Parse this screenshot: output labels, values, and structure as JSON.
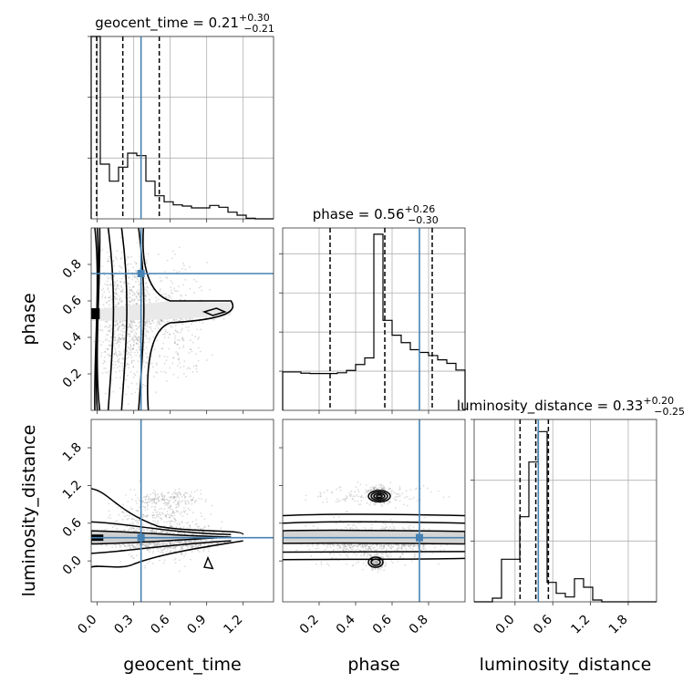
{
  "chart_data": {
    "type": "corner",
    "parameters": [
      "geocent_time",
      "phase",
      "luminosity_distance"
    ],
    "grid": true,
    "injection_color": "#4682b4",
    "line_color": "#000000",
    "diagonal": [
      {
        "parameter": "geocent_time",
        "title": {
          "prefix": "geocent_time = ",
          "value": "0.21",
          "upper": "+0.30",
          "lower": "−0.21"
        },
        "xlim": [
          -0.05,
          1.45
        ],
        "quantiles": [
          -0.005,
          0.21,
          0.51
        ],
        "injection": 0.36,
        "hist_edges": [
          -0.05,
          0.025,
          0.1,
          0.175,
          0.25,
          0.325,
          0.4,
          0.475,
          0.55,
          0.625,
          0.7,
          0.775,
          0.85,
          0.925,
          1.0,
          1.075,
          1.15,
          1.225,
          1.3,
          1.375,
          1.45
        ],
        "hist_counts": [
          3.0,
          0.9,
          0.62,
          0.85,
          1.08,
          1.04,
          0.62,
          0.38,
          0.28,
          0.23,
          0.21,
          0.18,
          0.18,
          0.22,
          0.19,
          0.11,
          0.06,
          0.01,
          0.0,
          0.0
        ],
        "ymax": 3.0,
        "yticks": [
          1.0,
          2.0,
          3.0
        ],
        "xticks": [
          0.0,
          0.3,
          0.6,
          0.9,
          1.2
        ],
        "xtick_labels": [
          "0.0",
          "0.3",
          "0.6",
          "0.9",
          "1.2"
        ]
      },
      {
        "parameter": "phase",
        "title": {
          "prefix": "phase = ",
          "value": "0.56",
          "upper": "+0.26",
          "lower": "−0.30"
        },
        "xlim": [
          0.0,
          1.0
        ],
        "quantiles": [
          0.26,
          0.56,
          0.82
        ],
        "injection": 0.75,
        "hist_edges": [
          0.0,
          0.05,
          0.1,
          0.15,
          0.2,
          0.25,
          0.3,
          0.35,
          0.4,
          0.45,
          0.5,
          0.55,
          0.6,
          0.65,
          0.7,
          0.75,
          0.8,
          0.85,
          0.9,
          0.95,
          1.0
        ],
        "hist_counts": [
          0.98,
          0.98,
          0.95,
          0.94,
          0.94,
          0.94,
          0.96,
          1.02,
          1.17,
          1.34,
          4.5,
          2.3,
          1.92,
          1.73,
          1.55,
          1.48,
          1.4,
          1.29,
          1.2,
          1.03
        ],
        "ymax": 4.66,
        "yticks": [
          1.0,
          2.0,
          3.0,
          4.0
        ],
        "xticks": [
          0.2,
          0.4,
          0.6,
          0.8
        ],
        "xtick_labels": [
          "0.2",
          "0.4",
          "0.6",
          "0.8"
        ]
      },
      {
        "parameter": "luminosity_distance",
        "title": {
          "prefix": "luminosity_distance = ",
          "value": "0.33",
          "upper": "+0.20",
          "lower": "−0.25"
        },
        "xlim": [
          -0.65,
          2.25
        ],
        "quantiles": [
          0.08,
          0.33,
          0.53
        ],
        "injection": 0.37,
        "hist_edges": [
          -0.65,
          -0.505,
          -0.36,
          -0.215,
          -0.07,
          0.075,
          0.22,
          0.365,
          0.51,
          0.655,
          0.8,
          0.945,
          1.09,
          1.235,
          1.38,
          1.525,
          1.67,
          1.815,
          1.96,
          2.105,
          2.25
        ],
        "hist_counts": [
          0.0,
          0.0,
          0.06,
          0.7,
          0.7,
          1.4,
          2.3,
          2.8,
          0.32,
          0.14,
          0.08,
          0.38,
          0.24,
          0.03,
          0.0,
          0.0,
          0.0,
          0.0,
          0.0,
          0.0
        ],
        "ymax": 3.0,
        "yticks": [
          1.0,
          2.0,
          3.0
        ],
        "xticks": [
          0.0,
          0.6,
          1.2,
          1.8
        ],
        "xtick_labels": [
          "0.0",
          "0.6",
          "1.2",
          "1.8"
        ]
      }
    ],
    "pairs": [
      {
        "x_param": "geocent_time",
        "y_param": "phase",
        "xlim": [
          -0.05,
          1.45
        ],
        "ylim": [
          0.0,
          1.0
        ],
        "injection": [
          0.36,
          0.75
        ],
        "yticks": [
          0.2,
          0.4,
          0.6,
          0.8
        ],
        "ytick_labels": [
          "0.2",
          "0.4",
          "0.6",
          "0.8"
        ],
        "scatter_regions": [
          {
            "x": [
              -0.05,
              0.55
            ],
            "y": [
              0.0,
              1.0
            ],
            "n": 900
          },
          {
            "x": [
              0.1,
              1.1
            ],
            "y": [
              0.45,
              0.62
            ],
            "n": 450
          },
          {
            "x": [
              0.3,
              1.0
            ],
            "y": [
              0.0,
              1.0
            ],
            "n": 250
          }
        ]
      },
      {
        "x_param": "geocent_time",
        "y_param": "luminosity_distance",
        "xlim": [
          -0.05,
          1.45
        ],
        "ylim": [
          -0.65,
          2.25
        ],
        "injection": [
          0.36,
          0.37
        ],
        "yticks": [
          0.0,
          0.6,
          1.2,
          1.8
        ],
        "ytick_labels": [
          "0.0",
          "0.6",
          "1.2",
          "1.8"
        ],
        "scatter_regions": [
          {
            "x": [
              -0.05,
              1.2
            ],
            "y": [
              0.1,
              0.6
            ],
            "n": 900
          },
          {
            "x": [
              -0.05,
              1.1
            ],
            "y": [
              -0.3,
              1.3
            ],
            "n": 500
          },
          {
            "x": [
              0.2,
              1.0
            ],
            "y": [
              0.8,
              1.2
            ],
            "n": 150
          }
        ]
      },
      {
        "x_param": "phase",
        "y_param": "luminosity_distance",
        "xlim": [
          0.0,
          1.0
        ],
        "ylim": [
          -0.65,
          2.25
        ],
        "injection": [
          0.75,
          0.37
        ],
        "scatter_regions": [
          {
            "x": [
              0.0,
              1.0
            ],
            "y": [
              0.15,
              0.55
            ],
            "n": 1100
          },
          {
            "x": [
              0.0,
              1.0
            ],
            "y": [
              -0.2,
              0.8
            ],
            "n": 500
          },
          {
            "x": [
              0.45,
              0.6
            ],
            "y": [
              0.85,
              1.25
            ],
            "n": 220
          },
          {
            "x": [
              0.45,
              0.58
            ],
            "y": [
              -0.2,
              0.15
            ],
            "n": 150
          },
          {
            "x": [
              0.0,
              1.0
            ],
            "y": [
              0.8,
              1.3
            ],
            "n": 150
          }
        ]
      }
    ]
  }
}
